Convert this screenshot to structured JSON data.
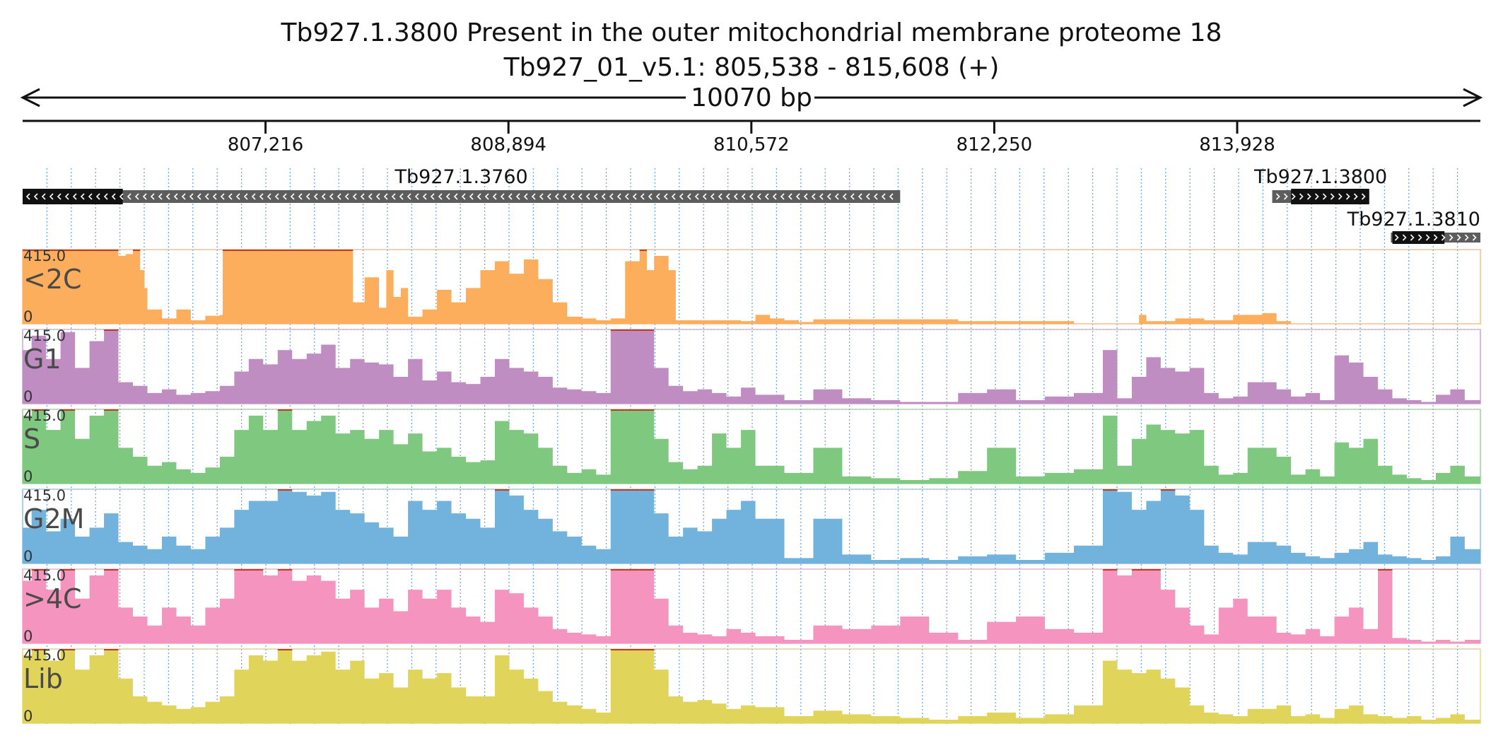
{
  "chart_data": {
    "type": "area",
    "title": "Tb927.1.3800  Present in the outer mitochondrial membrane proteome 18",
    "subtitle": "Tb927_01_v5.1: 805,538 - 815,608 (+)",
    "span_label": "10070 bp",
    "x_range": [
      805538,
      815608
    ],
    "x_ticks": [
      807216,
      808894,
      810572,
      812250,
      813928
    ],
    "x_tick_labels": [
      "807,216",
      "808,894",
      "810,572",
      "812,250",
      "813,928"
    ],
    "genes": [
      {
        "name": "Tb927.1.3760",
        "strand": "-",
        "start": 805538,
        "end": 811600,
        "cds_start": 805538,
        "cds_end": 806230,
        "row": 0
      },
      {
        "name": "Tb927.1.3800",
        "strand": "+",
        "start": 814170,
        "end": 814840,
        "cds_start": 814300,
        "cds_end": 814840,
        "row": 0
      },
      {
        "name": "Tb927.1.3810",
        "strand": "+",
        "start": 814990,
        "end": 815608,
        "cds_start": 815000,
        "cds_end": 815360,
        "row": 1
      }
    ],
    "y_range": [
      0,
      415.0
    ],
    "y_max_label": "415.0",
    "y_min_label": "0",
    "tracks": [
      {
        "name": "<2C",
        "color": "#fdae5c",
        "x": [
          805538,
          805700,
          805900,
          806100,
          806200,
          806250,
          806300,
          806350,
          806380,
          806400,
          806500,
          806600,
          806700,
          806800,
          806900,
          806920,
          807800,
          807820,
          807900,
          808000,
          808050,
          808100,
          808150,
          808200,
          808300,
          808400,
          808500,
          808600,
          808700,
          808800,
          808900,
          809000,
          809100,
          809200,
          809300,
          809400,
          809450,
          809500,
          809600,
          809700,
          809800,
          809850,
          809900,
          810000,
          810050,
          810500,
          810600,
          810700,
          810800,
          810900,
          811000,
          812000,
          812800,
          813200,
          813250,
          813300,
          813500,
          813700,
          813900,
          814100,
          814200,
          814300,
          814500,
          815000,
          815300,
          815608
        ],
        "values": [
          415,
          415,
          415,
          415,
          380,
          390,
          415,
          300,
          200,
          80,
          30,
          80,
          20,
          45,
          50,
          415,
          415,
          120,
          260,
          90,
          300,
          150,
          200,
          40,
          80,
          190,
          120,
          200,
          300,
          350,
          280,
          360,
          250,
          120,
          40,
          30,
          30,
          20,
          30,
          350,
          415,
          300,
          380,
          300,
          20,
          15,
          50,
          30,
          20,
          10,
          25,
          15,
          0,
          0,
          50,
          15,
          30,
          20,
          50,
          60,
          15,
          0,
          0,
          0,
          0,
          0
        ]
      },
      {
        "name": "G1",
        "color": "#c08dc3",
        "x": [
          805538,
          805600,
          805700,
          805800,
          805900,
          806000,
          806100,
          806200,
          806300,
          806400,
          806500,
          806600,
          806700,
          806800,
          806900,
          807000,
          807100,
          807200,
          807300,
          807400,
          807500,
          807600,
          807700,
          807800,
          807900,
          808000,
          808100,
          808200,
          808300,
          808400,
          808500,
          808600,
          808700,
          808800,
          808900,
          809000,
          809100,
          809200,
          809300,
          809400,
          809500,
          809600,
          809700,
          809800,
          809900,
          810000,
          810100,
          810200,
          810300,
          810400,
          810500,
          810600,
          810800,
          811000,
          811200,
          811400,
          811600,
          811800,
          812000,
          812200,
          812400,
          812600,
          812800,
          813000,
          813100,
          813200,
          813300,
          813400,
          813500,
          813600,
          813700,
          813800,
          813900,
          814000,
          814200,
          814300,
          814400,
          814500,
          814600,
          814700,
          814800,
          814900,
          815000,
          815100,
          815200,
          815300,
          815400,
          815500,
          815608
        ],
        "values": [
          300,
          380,
          250,
          400,
          200,
          350,
          415,
          120,
          100,
          60,
          80,
          50,
          60,
          70,
          100,
          180,
          250,
          220,
          300,
          250,
          280,
          330,
          200,
          250,
          230,
          220,
          150,
          250,
          130,
          180,
          120,
          110,
          150,
          250,
          200,
          180,
          150,
          90,
          80,
          70,
          60,
          415,
          415,
          415,
          200,
          100,
          70,
          80,
          60,
          40,
          90,
          50,
          20,
          80,
          30,
          20,
          10,
          10,
          60,
          80,
          20,
          40,
          60,
          300,
          30,
          150,
          260,
          200,
          180,
          200,
          60,
          30,
          40,
          120,
          80,
          40,
          60,
          20,
          270,
          230,
          150,
          80,
          30,
          20,
          10,
          50,
          80,
          20,
          100
        ]
      },
      {
        "name": "S",
        "color": "#7ec87f",
        "x": [
          805538,
          805600,
          805700,
          805800,
          805900,
          806000,
          806100,
          806200,
          806300,
          806400,
          806500,
          806600,
          806700,
          806800,
          806900,
          807000,
          807100,
          807200,
          807300,
          807400,
          807500,
          807600,
          807700,
          807800,
          807900,
          808000,
          808100,
          808200,
          808300,
          808400,
          808500,
          808600,
          808700,
          808800,
          808900,
          809000,
          809100,
          809200,
          809300,
          809400,
          809500,
          809600,
          809700,
          809800,
          809900,
          810000,
          810100,
          810200,
          810300,
          810400,
          810500,
          810600,
          810800,
          811000,
          811200,
          811400,
          811600,
          811800,
          812000,
          812200,
          812400,
          812600,
          812800,
          813000,
          813100,
          813200,
          813300,
          813400,
          813500,
          813600,
          813700,
          813800,
          813900,
          814000,
          814200,
          814300,
          814400,
          814500,
          814600,
          814700,
          814800,
          814900,
          815000,
          815100,
          815200,
          815300,
          815400,
          815500,
          815608
        ],
        "values": [
          380,
          415,
          300,
          415,
          250,
          380,
          415,
          200,
          150,
          100,
          120,
          80,
          60,
          90,
          150,
          300,
          380,
          300,
          415,
          300,
          350,
          380,
          280,
          300,
          250,
          300,
          220,
          280,
          180,
          200,
          150,
          120,
          130,
          350,
          300,
          280,
          200,
          100,
          60,
          80,
          50,
          415,
          415,
          415,
          250,
          120,
          80,
          100,
          280,
          200,
          300,
          100,
          60,
          200,
          40,
          30,
          20,
          30,
          70,
          200,
          40,
          60,
          80,
          380,
          100,
          250,
          330,
          300,
          280,
          300,
          100,
          50,
          60,
          200,
          150,
          50,
          80,
          40,
          230,
          200,
          250,
          100,
          50,
          30,
          20,
          60,
          100,
          40,
          150
        ]
      },
      {
        "name": "G2M",
        "color": "#72b3de",
        "x": [
          805538,
          805600,
          805700,
          805800,
          805900,
          806000,
          806100,
          806200,
          806300,
          806400,
          806500,
          806600,
          806700,
          806800,
          806900,
          807000,
          807100,
          807200,
          807300,
          807400,
          807500,
          807600,
          807700,
          807800,
          807900,
          808000,
          808100,
          808200,
          808300,
          808400,
          808500,
          808600,
          808700,
          808800,
          808900,
          809000,
          809100,
          809200,
          809300,
          809400,
          809500,
          809600,
          809700,
          809800,
          809900,
          810000,
          810100,
          810200,
          810300,
          810400,
          810500,
          810600,
          810800,
          811000,
          811200,
          811400,
          811600,
          811800,
          812000,
          812200,
          812400,
          812600,
          812800,
          813000,
          813100,
          813200,
          813300,
          813400,
          813500,
          813600,
          813700,
          813800,
          813900,
          814000,
          814200,
          814300,
          814400,
          814500,
          814600,
          814700,
          814800,
          814900,
          815000,
          815100,
          815200,
          815300,
          815400,
          815500,
          815608
        ],
        "values": [
          200,
          300,
          180,
          250,
          150,
          200,
          280,
          120,
          100,
          80,
          150,
          100,
          80,
          150,
          200,
          300,
          350,
          350,
          415,
          400,
          380,
          400,
          300,
          280,
          230,
          200,
          150,
          350,
          300,
          350,
          280,
          250,
          200,
          415,
          380,
          300,
          250,
          180,
          150,
          100,
          80,
          415,
          415,
          415,
          280,
          150,
          200,
          180,
          250,
          300,
          350,
          250,
          30,
          250,
          50,
          20,
          30,
          20,
          40,
          50,
          20,
          60,
          100,
          415,
          400,
          300,
          350,
          415,
          380,
          300,
          100,
          60,
          50,
          120,
          100,
          60,
          40,
          30,
          60,
          80,
          120,
          50,
          40,
          30,
          20,
          40,
          150,
          80,
          100
        ]
      },
      {
        "name": ">4C",
        "color": "#f594bf",
        "x": [
          805538,
          805600,
          805700,
          805800,
          805900,
          806000,
          806100,
          806200,
          806300,
          806400,
          806500,
          806600,
          806700,
          806800,
          806900,
          807000,
          807100,
          807200,
          807300,
          807400,
          807500,
          807600,
          807700,
          807800,
          807900,
          808000,
          808100,
          808200,
          808300,
          808400,
          808500,
          808600,
          808700,
          808800,
          808900,
          809000,
          809100,
          809200,
          809300,
          809400,
          809500,
          809600,
          809700,
          809800,
          809900,
          810000,
          810100,
          810200,
          810300,
          810400,
          810500,
          810600,
          810800,
          811000,
          811200,
          811400,
          811600,
          811800,
          812000,
          812200,
          812400,
          812600,
          812800,
          813000,
          813100,
          813200,
          813300,
          813400,
          813500,
          813600,
          813700,
          813800,
          813900,
          814000,
          814200,
          814300,
          814400,
          814500,
          814600,
          814700,
          814800,
          814900,
          815000,
          815100,
          815200,
          815300,
          815400,
          815500,
          815608
        ],
        "values": [
          350,
          415,
          300,
          415,
          250,
          380,
          415,
          200,
          150,
          100,
          200,
          150,
          100,
          200,
          250,
          415,
          415,
          380,
          415,
          350,
          380,
          350,
          250,
          300,
          200,
          250,
          180,
          300,
          250,
          300,
          200,
          150,
          120,
          300,
          280,
          200,
          150,
          80,
          60,
          50,
          40,
          415,
          415,
          415,
          250,
          100,
          60,
          50,
          40,
          80,
          60,
          40,
          20,
          100,
          80,
          100,
          150,
          60,
          20,
          120,
          150,
          80,
          60,
          415,
          380,
          415,
          415,
          300,
          200,
          100,
          50,
          200,
          250,
          150,
          60,
          50,
          80,
          40,
          150,
          200,
          80,
          415,
          30,
          20,
          10,
          20,
          10,
          20,
          30
        ]
      },
      {
        "name": "Lib",
        "color": "#e0d55a",
        "x": [
          805538,
          805600,
          805700,
          805800,
          805900,
          806000,
          806100,
          806200,
          806300,
          806400,
          806500,
          806600,
          806700,
          806800,
          806900,
          807000,
          807100,
          807200,
          807300,
          807400,
          807500,
          807600,
          807700,
          807800,
          807900,
          808000,
          808100,
          808200,
          808300,
          808400,
          808500,
          808600,
          808700,
          808800,
          808900,
          809000,
          809100,
          809200,
          809300,
          809400,
          809500,
          809600,
          809700,
          809800,
          809900,
          810000,
          810100,
          810200,
          810300,
          810400,
          810500,
          810600,
          810800,
          811000,
          811200,
          811400,
          811600,
          811800,
          812000,
          812200,
          812400,
          812600,
          812800,
          813000,
          813100,
          813200,
          813300,
          813400,
          813500,
          813600,
          813700,
          813800,
          813900,
          814000,
          814200,
          814300,
          814400,
          814500,
          814600,
          814700,
          814800,
          814900,
          815000,
          815100,
          815200,
          815300,
          815400,
          815500,
          815608
        ],
        "values": [
          380,
          415,
          350,
          415,
          300,
          380,
          415,
          250,
          150,
          120,
          100,
          80,
          90,
          120,
          150,
          300,
          380,
          350,
          415,
          350,
          380,
          400,
          300,
          350,
          250,
          280,
          200,
          300,
          250,
          280,
          200,
          150,
          150,
          380,
          300,
          250,
          180,
          120,
          100,
          80,
          60,
          415,
          415,
          415,
          300,
          150,
          120,
          130,
          110,
          80,
          100,
          90,
          40,
          70,
          50,
          40,
          30,
          20,
          40,
          60,
          30,
          50,
          100,
          350,
          300,
          280,
          300,
          250,
          200,
          100,
          60,
          50,
          40,
          80,
          100,
          40,
          50,
          30,
          80,
          100,
          50,
          40,
          30,
          40,
          20,
          30,
          50,
          20,
          60
        ]
      }
    ]
  }
}
